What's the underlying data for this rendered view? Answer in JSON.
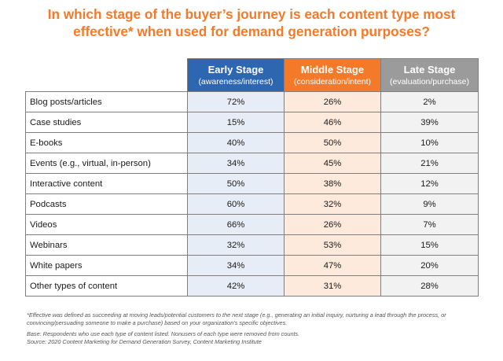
{
  "title_line1": "In which stage of the buyer’s journey is each content type most",
  "title_line2": "effective* when used for demand generation purposes?",
  "colors": {
    "title": "#f47a2a",
    "early_header": "#2d67b2",
    "middle_header": "#f47a2a",
    "late_header": "#9b9b9b",
    "early_cell": "#e6edf7",
    "middle_cell": "#fdeadc",
    "late_cell": "#f2f2f2",
    "border": "#7f7f7f"
  },
  "chart_data": {
    "type": "table",
    "columns": [
      {
        "name": "Early Stage",
        "sub": "(awareness/interest)"
      },
      {
        "name": "Middle Stage",
        "sub": "(consideration/intent)"
      },
      {
        "name": "Late Stage",
        "sub": "(evaluation/purchase)"
      }
    ],
    "rows": [
      {
        "label": "Blog posts/articles",
        "values": [
          "72%",
          "26%",
          "2%"
        ]
      },
      {
        "label": "Case studies",
        "values": [
          "15%",
          "46%",
          "39%"
        ]
      },
      {
        "label": "E-books",
        "values": [
          "40%",
          "50%",
          "10%"
        ]
      },
      {
        "label": "Events (e.g., virtual, in-person)",
        "values": [
          "34%",
          "45%",
          "21%"
        ]
      },
      {
        "label": "Interactive content",
        "values": [
          "50%",
          "38%",
          "12%"
        ]
      },
      {
        "label": "Podcasts",
        "values": [
          "60%",
          "32%",
          "9%"
        ]
      },
      {
        "label": "Videos",
        "values": [
          "66%",
          "26%",
          "7%"
        ]
      },
      {
        "label": "Webinars",
        "values": [
          "32%",
          "53%",
          "15%"
        ]
      },
      {
        "label": "White papers",
        "values": [
          "34%",
          "47%",
          "20%"
        ]
      },
      {
        "label": "Other types of content",
        "values": [
          "42%",
          "31%",
          "28%"
        ]
      }
    ]
  },
  "footnote": "*Effective was defined as succeeding at moving leads/potential customers to the next stage (e.g., generating an initial inquiry, nurturing a lead through the process, or convincing/persuading someone to make a purchase) based on your organization’s specific objectives.",
  "base_note": "Base: Respondents who use each type of content listed. Nonusers of each type were removed from counts.",
  "source_note": "Source: 2020 Content Marketing for Demand Generation Survey, Content Marketing Institute"
}
